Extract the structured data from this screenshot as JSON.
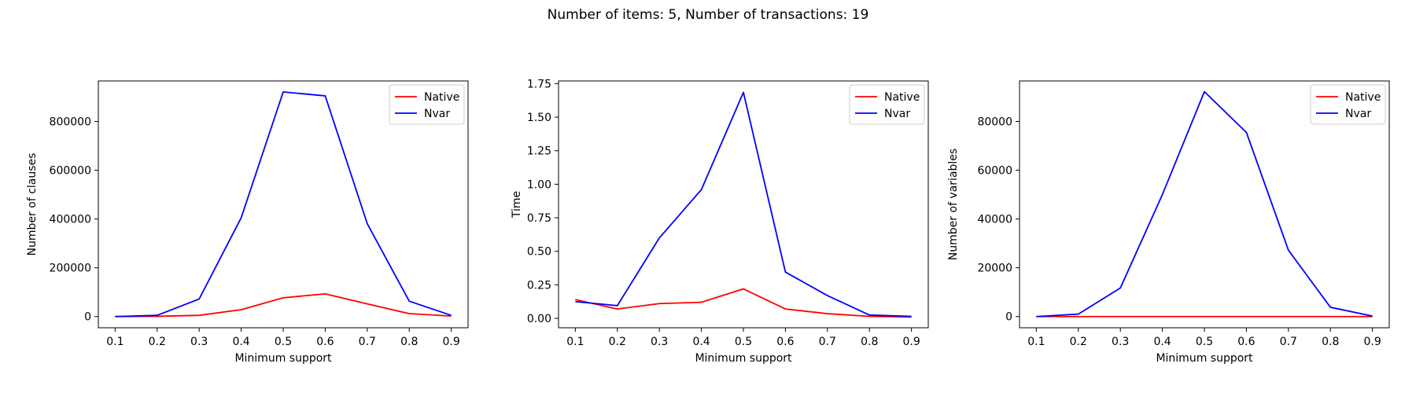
{
  "figure": {
    "title": "Number of items: 5, Number of transactions: 19"
  },
  "chart_data": [
    {
      "type": "line",
      "xlabel": "Minimum support",
      "ylabel": "Number of clauses",
      "x": [
        0.1,
        0.2,
        0.3,
        0.4,
        0.5,
        0.6,
        0.7,
        0.8,
        0.9
      ],
      "x_ticks": [
        "0.1",
        "0.2",
        "0.3",
        "0.4",
        "0.5",
        "0.6",
        "0.7",
        "0.8",
        "0.9"
      ],
      "xlim": [
        0.06,
        0.94
      ],
      "ylim": [
        -46000,
        966000
      ],
      "y_ticks": [
        0,
        200000,
        400000,
        600000,
        800000
      ],
      "y_tick_labels": [
        "0",
        "200000",
        "400000",
        "600000",
        "800000"
      ],
      "legend": "top-right",
      "series": [
        {
          "name": "Native",
          "color": "#ff0000",
          "values": [
            0,
            1000,
            5000,
            28000,
            77000,
            93000,
            52000,
            12000,
            2000
          ]
        },
        {
          "name": "Nvar",
          "color": "#0000ff",
          "values": [
            0,
            5000,
            72000,
            405000,
            921000,
            905000,
            381000,
            63000,
            5000
          ]
        }
      ]
    },
    {
      "type": "line",
      "xlabel": "Minimum support",
      "ylabel": "Time",
      "x": [
        0.1,
        0.2,
        0.3,
        0.4,
        0.5,
        0.6,
        0.7,
        0.8,
        0.9
      ],
      "x_ticks": [
        "0.1",
        "0.2",
        "0.3",
        "0.4",
        "0.5",
        "0.6",
        "0.7",
        "0.8",
        "0.9"
      ],
      "xlim": [
        0.06,
        0.94
      ],
      "ylim": [
        -0.07,
        1.77
      ],
      "y_ticks": [
        0,
        0.25,
        0.5,
        0.75,
        1.0,
        1.25,
        1.5,
        1.75
      ],
      "y_tick_labels": [
        "0.00",
        "0.25",
        "0.50",
        "0.75",
        "1.00",
        "1.25",
        "1.50",
        "1.75"
      ],
      "legend": "top-right",
      "series": [
        {
          "name": "Native",
          "color": "#ff0000",
          "values": [
            0.14,
            0.07,
            0.11,
            0.12,
            0.22,
            0.07,
            0.035,
            0.015,
            0.01
          ]
        },
        {
          "name": "Nvar",
          "color": "#0000ff",
          "values": [
            0.125,
            0.095,
            0.6,
            0.96,
            1.685,
            0.345,
            0.17,
            0.025,
            0.015
          ]
        }
      ]
    },
    {
      "type": "line",
      "xlabel": "Minimum support",
      "ylabel": "Number of variables",
      "x": [
        0.1,
        0.2,
        0.3,
        0.4,
        0.5,
        0.6,
        0.7,
        0.8,
        0.9
      ],
      "x_ticks": [
        "0.1",
        "0.2",
        "0.3",
        "0.4",
        "0.5",
        "0.6",
        "0.7",
        "0.8",
        "0.9"
      ],
      "xlim": [
        0.06,
        0.94
      ],
      "ylim": [
        -4600,
        96600
      ],
      "y_ticks": [
        0,
        20000,
        40000,
        60000,
        80000
      ],
      "y_tick_labels": [
        "0",
        "20000",
        "40000",
        "60000",
        "80000"
      ],
      "legend": "top-right",
      "series": [
        {
          "name": "Native",
          "color": "#ff0000",
          "values": [
            0,
            0,
            0,
            0,
            0,
            0,
            0,
            0,
            0
          ]
        },
        {
          "name": "Nvar",
          "color": "#0000ff",
          "values": [
            0,
            1000,
            11700,
            50000,
            92200,
            75500,
            27200,
            3800,
            200
          ]
        }
      ]
    }
  ]
}
